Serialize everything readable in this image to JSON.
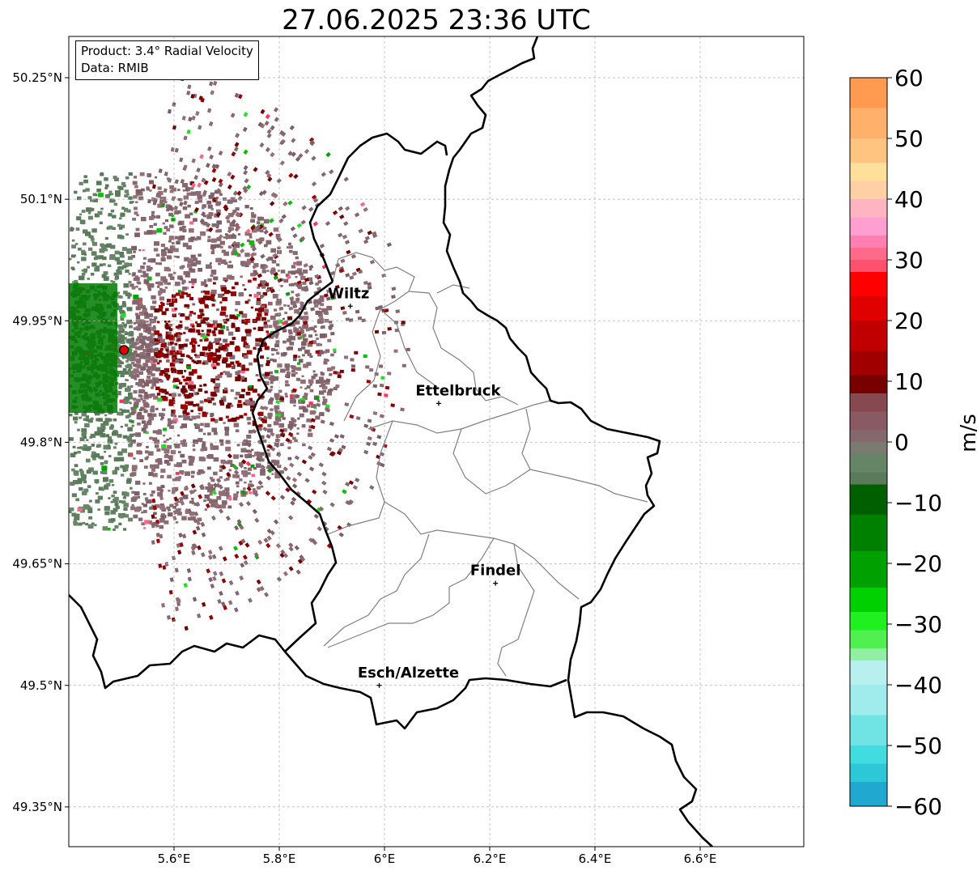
{
  "title": "27.06.2025 23:36 UTC",
  "info": {
    "product": "Product: 3.4° Radial Velocity",
    "source": "Data: RMIB"
  },
  "map": {
    "lon_ticks": [
      "5.6°E",
      "5.8°E",
      "6°E",
      "6.2°E",
      "6.4°E",
      "6.6°E"
    ],
    "lat_ticks": [
      "50.25°N",
      "50.1°N",
      "49.95°N",
      "49.8°N",
      "49.65°N",
      "49.5°N",
      "49.35°N"
    ],
    "cities": [
      {
        "name": "Wiltz",
        "lon": 5.935,
        "lat": 49.968
      },
      {
        "name": "Ettelbruck",
        "lon": 6.103,
        "lat": 49.848
      },
      {
        "name": "Findel",
        "lon": 6.211,
        "lat": 49.626
      },
      {
        "name": "Esch/Alzette",
        "lon": 5.99,
        "lat": 49.5
      }
    ],
    "radar_site": {
      "lon": 5.505,
      "lat": 49.914
    }
  },
  "colorbar": {
    "label": "m/s",
    "min": -60,
    "max": 60,
    "ticks": [
      "60",
      "50",
      "40",
      "30",
      "20",
      "10",
      "0",
      "−10",
      "−20",
      "−30",
      "−40",
      "−50",
      "−60"
    ]
  },
  "colors": {
    "border": "#000000",
    "canton": "#808080",
    "grid": "#b0b0b0",
    "radar_site": "#e00000"
  }
}
